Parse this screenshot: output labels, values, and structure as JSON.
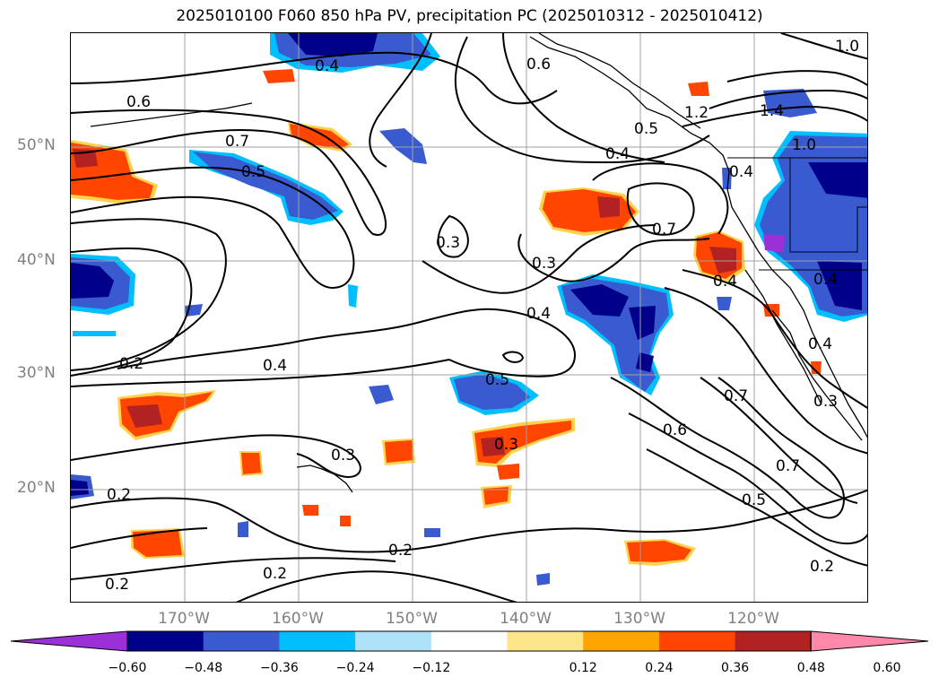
{
  "title": "2025010100 F060 850 hPa PV, precipitation PC (2025010312 - 2025010412)",
  "lat_labels": [
    "50°N",
    "40°N",
    "30°N",
    "20°N"
  ],
  "lon_labels": [
    "170°W",
    "160°W",
    "150°W",
    "140°W",
    "130°W",
    "120°W"
  ],
  "contour_labels": [
    "0.6",
    "0.4",
    "0.7",
    "0.5",
    "0.3",
    "0.4",
    "0.2",
    "0.4",
    "0.3",
    "0.2",
    "0.2",
    "0.2",
    "0.5",
    "0.3",
    "0.2",
    "0.6",
    "0.5",
    "0.4",
    "1.2",
    "1.4",
    "1.0",
    "0.7",
    "0.3",
    "0.4",
    "0.4",
    "0.7",
    "0.6",
    "0.7",
    "0.5",
    "0.2",
    "0.4",
    "0.3",
    "1.0",
    "0.4"
  ],
  "colorbar": {
    "ticks": [
      "−0.60",
      "−0.48",
      "−0.36",
      "−0.24",
      "−0.12",
      "0.12",
      "0.24",
      "0.36",
      "0.48",
      "0.60"
    ],
    "colors": [
      "#9b30d9",
      "#00008b",
      "#3a5bd0",
      "#00bfff",
      "#aee2fa",
      "#ffffff",
      "#fde68a",
      "#ffa500",
      "#ff4500",
      "#b22222",
      "#ff88aa"
    ]
  },
  "colors": {
    "strong_negative": "#00008b",
    "negative": "#3a5bd0",
    "weak_negative": "#00bfff",
    "strong_positive": "#b22222",
    "positive": "#ff4500",
    "weak_positive": "#ffd24d"
  }
}
